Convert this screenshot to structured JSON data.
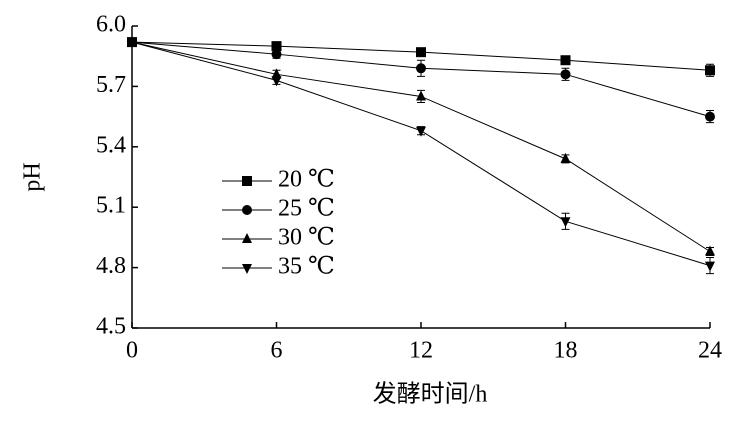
{
  "chart_data": {
    "type": "line",
    "x_label": "发酵时间/h",
    "y_label": "pH",
    "x": [
      0,
      6,
      12,
      18,
      24
    ],
    "xlim": [
      0,
      24
    ],
    "xticks": [
      0,
      6,
      12,
      18,
      24
    ],
    "ylim": [
      4.5,
      6.0
    ],
    "yticks": [
      4.5,
      4.8,
      5.1,
      5.4,
      5.7,
      {
        "value": 6.0,
        "label": "6.0"
      }
    ],
    "legend": "left",
    "series": [
      {
        "name": "20 ℃",
        "color": "#000000",
        "marker": "square",
        "values": [
          5.92,
          5.9,
          5.87,
          5.83,
          5.78
        ],
        "errors": [
          0.01,
          0.02,
          0.02,
          0.02,
          0.03
        ]
      },
      {
        "name": "25 ℃",
        "color": "#000000",
        "marker": "circle",
        "values": [
          5.92,
          5.86,
          5.79,
          5.76,
          5.55
        ],
        "errors": [
          0.01,
          0.02,
          0.04,
          0.03,
          0.03
        ]
      },
      {
        "name": "30 ℃",
        "color": "#000000",
        "marker": "triangle-up",
        "values": [
          5.92,
          5.76,
          5.65,
          5.34,
          4.88
        ],
        "errors": [
          0.01,
          0.02,
          0.03,
          0.02,
          0.02
        ]
      },
      {
        "name": "35 ℃",
        "color": "#000000",
        "marker": "triangle-down",
        "values": [
          5.92,
          5.73,
          5.48,
          5.03,
          4.81
        ],
        "errors": [
          0.01,
          0.02,
          0.02,
          0.04,
          0.04
        ]
      }
    ]
  }
}
